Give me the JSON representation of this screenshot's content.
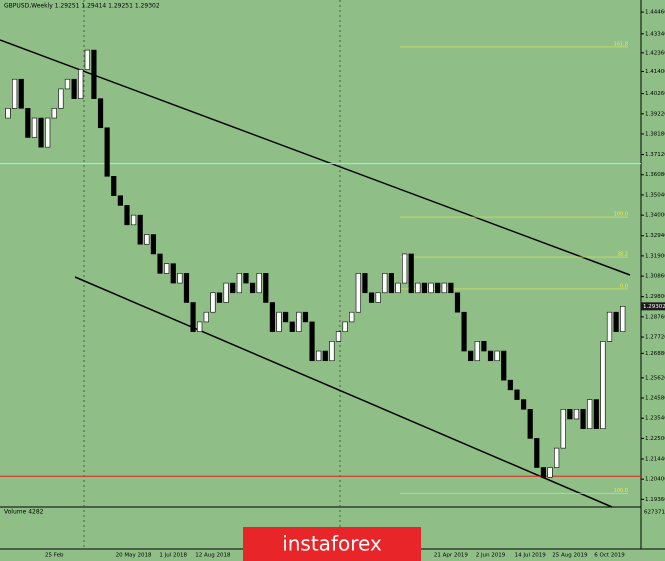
{
  "header": {
    "title": "GBPUSD,Weekly  1.29251 1.29414 1.29251 1.29302"
  },
  "chart_data": {
    "type": "candlestick",
    "categories": [
      null,
      null,
      null,
      null,
      null,
      null,
      null,
      "25 Feb",
      null,
      null,
      null,
      null,
      null,
      null,
      null,
      null,
      null,
      null,
      null,
      "20 May 2018",
      null,
      null,
      null,
      null,
      null,
      "1 Jul 2018",
      null,
      null,
      null,
      null,
      null,
      "12 Aug 2018",
      null,
      null,
      null,
      null,
      null,
      null,
      null,
      null,
      null,
      null,
      null,
      null,
      null,
      null,
      null,
      null,
      null,
      null,
      null,
      null,
      null,
      null,
      null,
      null,
      null,
      null,
      null,
      null,
      null,
      null,
      null,
      null,
      null,
      null,
      null,
      "21 Apr 2019",
      null,
      null,
      null,
      null,
      null,
      "2 Jun 2019",
      null,
      null,
      null,
      null,
      null,
      "14 Jul 2019",
      null,
      null,
      null,
      null,
      null,
      "25 Aug 2019",
      null,
      null,
      null,
      null,
      null,
      "6 Oct 2019",
      null,
      null
    ],
    "open": [
      1.39,
      1.395,
      1.41,
      1.395,
      1.38,
      1.39,
      1.375,
      1.39,
      1.395,
      1.405,
      1.41,
      1.4,
      1.415,
      1.425,
      1.4,
      1.385,
      1.36,
      1.35,
      1.345,
      1.335,
      1.34,
      1.325,
      1.33,
      1.32,
      1.31,
      1.315,
      1.305,
      1.31,
      1.295,
      1.28,
      1.285,
      1.29,
      1.3,
      1.295,
      1.305,
      1.3,
      1.31,
      1.305,
      1.3,
      1.31,
      1.295,
      1.28,
      1.29,
      1.285,
      1.28,
      1.29,
      1.285,
      1.265,
      1.27,
      1.265,
      1.275,
      1.28,
      1.285,
      1.29,
      1.31,
      1.3,
      1.295,
      1.3,
      1.31,
      1.3,
      1.305,
      1.32,
      1.3,
      1.305,
      1.3,
      1.305,
      1.3,
      1.305,
      1.3,
      1.29,
      1.27,
      1.265,
      1.275,
      1.27,
      1.265,
      1.27,
      1.255,
      1.25,
      1.245,
      1.24,
      1.225,
      1.21,
      1.205,
      1.21,
      1.22,
      1.24,
      1.235,
      1.24,
      1.23,
      1.245,
      1.23,
      1.275,
      1.29,
      1.28
    ],
    "close": [
      1.395,
      1.41,
      1.395,
      1.38,
      1.39,
      1.375,
      1.39,
      1.395,
      1.405,
      1.41,
      1.4,
      1.415,
      1.425,
      1.4,
      1.385,
      1.36,
      1.35,
      1.345,
      1.335,
      1.34,
      1.325,
      1.33,
      1.32,
      1.31,
      1.315,
      1.305,
      1.31,
      1.295,
      1.28,
      1.285,
      1.29,
      1.3,
      1.295,
      1.305,
      1.3,
      1.31,
      1.305,
      1.3,
      1.31,
      1.295,
      1.28,
      1.29,
      1.285,
      1.28,
      1.29,
      1.285,
      1.265,
      1.27,
      1.265,
      1.275,
      1.28,
      1.285,
      1.29,
      1.31,
      1.3,
      1.295,
      1.3,
      1.31,
      1.3,
      1.305,
      1.32,
      1.3,
      1.305,
      1.3,
      1.305,
      1.3,
      1.305,
      1.3,
      1.29,
      1.27,
      1.265,
      1.275,
      1.27,
      1.265,
      1.27,
      1.255,
      1.25,
      1.245,
      1.24,
      1.225,
      1.21,
      1.205,
      1.21,
      1.22,
      1.24,
      1.235,
      1.24,
      1.23,
      1.245,
      1.23,
      1.275,
      1.29,
      1.28,
      1.29302
    ],
    "up_color": "#ffffff",
    "down_color": "#000000",
    "ylim": [
      1.1907,
      1.4508
    ],
    "yticks": [
      {
        "value": 1.4446,
        "label": "1.44460"
      },
      {
        "value": 1.4334,
        "label": "1.43340"
      },
      {
        "value": 1.4236,
        "label": "1.42360"
      },
      {
        "value": 1.414,
        "label": "1.41400"
      },
      {
        "value": 1.4026,
        "label": "1.40260"
      },
      {
        "value": 1.3922,
        "label": "1.39220"
      },
      {
        "value": 1.3818,
        "label": "1.38180"
      },
      {
        "value": 1.3712,
        "label": "1.37120"
      },
      {
        "value": 1.3608,
        "label": "1.36080"
      },
      {
        "value": 1.3504,
        "label": "1.35040"
      },
      {
        "value": 1.34,
        "label": "1.34000"
      },
      {
        "value": 1.3294,
        "label": "1.32940"
      },
      {
        "value": 1.319,
        "label": "1.31900"
      },
      {
        "value": 1.3086,
        "label": "1.30860"
      },
      {
        "value": 1.298,
        "label": "1.29800"
      },
      {
        "value": 1.2876,
        "label": "1.28760"
      },
      {
        "value": 1.2772,
        "label": "1.27720"
      },
      {
        "value": 1.2688,
        "label": "1.26880"
      },
      {
        "value": 1.2562,
        "label": "1.25620"
      },
      {
        "value": 1.2458,
        "label": "1.24580"
      },
      {
        "value": 1.2354,
        "label": "1.23540"
      },
      {
        "value": 1.225,
        "label": "1.22500"
      },
      {
        "value": 1.2144,
        "label": "1.21440"
      },
      {
        "value": 1.204,
        "label": "1.20400"
      },
      {
        "value": 1.1936,
        "label": "1.19360"
      }
    ],
    "last_price": {
      "value": 1.29302,
      "label": "1.29302"
    },
    "levels": [
      {
        "value": 1.2055,
        "color": "#e0201a"
      },
      {
        "value": 1.3665,
        "color": "#7fffff"
      }
    ],
    "fib_levels": [
      {
        "value": 1.4266,
        "label": "161.8"
      },
      {
        "value": 1.339,
        "label": "100.0"
      },
      {
        "value": 1.3184,
        "label": "38.2"
      },
      {
        "value": 1.302,
        "label": "0.0"
      },
      {
        "value": 1.1966,
        "label": "100.0"
      }
    ],
    "volume_label": "Volume 4282",
    "volume_max": "627371"
  },
  "logo": "instaforex"
}
